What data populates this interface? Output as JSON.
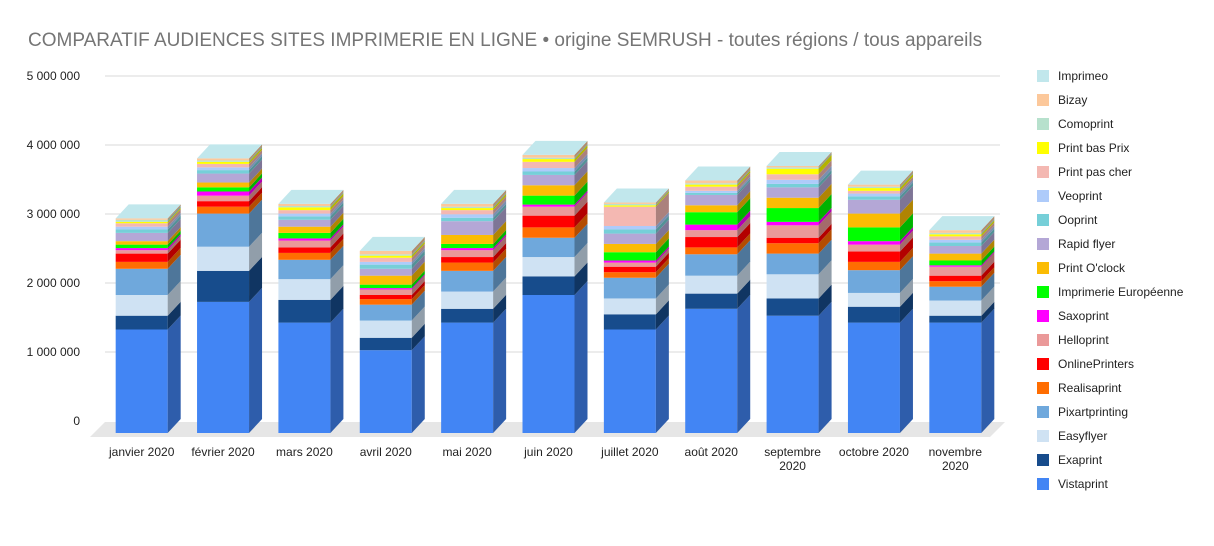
{
  "chart_data": {
    "type": "bar",
    "stacked": true,
    "title": "COMPARATIF AUDIENCES SITES IMPRIMERIE EN LIGNE • origine SEMRUSH - toutes régions / tous appareils",
    "xlabel": "",
    "ylabel": "",
    "ylim": [
      0,
      5000000
    ],
    "yticks": [
      0,
      1000000,
      2000000,
      3000000,
      4000000,
      5000000
    ],
    "ytick_labels": [
      "0",
      "1 000 000",
      "2 000 000",
      "3 000 000",
      "4 000 000",
      "5 000 000"
    ],
    "grid": true,
    "legend_position": "right",
    "categories": [
      [
        "janvier 2020"
      ],
      [
        "février 2020"
      ],
      [
        "mars 2020"
      ],
      [
        "avril 2020"
      ],
      [
        "mai 2020"
      ],
      [
        "juin 2020"
      ],
      [
        "juillet 2020"
      ],
      [
        "août 2020"
      ],
      [
        "septembre",
        "2020"
      ],
      [
        "octobre 2020"
      ],
      [
        "novembre",
        "2020"
      ]
    ],
    "series": [
      {
        "name": "Vistaprint",
        "color": "#4285f4",
        "values": [
          1500000,
          1900000,
          1600000,
          1200000,
          1600000,
          2000000,
          1500000,
          1800000,
          1700000,
          1600000,
          1600000
        ]
      },
      {
        "name": "Exaprint",
        "color": "#174c8c",
        "values": [
          200000,
          450000,
          330000,
          180000,
          200000,
          270000,
          220000,
          220000,
          250000,
          230000,
          100000
        ]
      },
      {
        "name": "Easyflyer",
        "color": "#cfe2f3",
        "values": [
          300000,
          350000,
          300000,
          250000,
          250000,
          280000,
          230000,
          260000,
          350000,
          200000,
          220000
        ]
      },
      {
        "name": "Pixartprinting",
        "color": "#6fa8dc",
        "values": [
          380000,
          480000,
          280000,
          230000,
          300000,
          280000,
          300000,
          310000,
          300000,
          330000,
          200000
        ]
      },
      {
        "name": "Realisaprint",
        "color": "#ff6d01",
        "values": [
          100000,
          100000,
          100000,
          80000,
          120000,
          150000,
          80000,
          100000,
          150000,
          120000,
          80000
        ]
      },
      {
        "name": "OnlinePrinters",
        "color": "#ff0000",
        "values": [
          120000,
          80000,
          80000,
          60000,
          80000,
          170000,
          80000,
          150000,
          80000,
          150000,
          80000
        ]
      },
      {
        "name": "Helloprint",
        "color": "#ea9999",
        "values": [
          50000,
          80000,
          100000,
          80000,
          100000,
          130000,
          60000,
          100000,
          180000,
          100000,
          130000
        ]
      },
      {
        "name": "Saxoprint",
        "color": "#ff00ff",
        "values": [
          30000,
          60000,
          30000,
          20000,
          30000,
          30000,
          30000,
          80000,
          50000,
          50000,
          20000
        ]
      },
      {
        "name": "Imprimerie Européenne",
        "color": "#00ff00",
        "values": [
          50000,
          60000,
          80000,
          50000,
          60000,
          130000,
          120000,
          180000,
          200000,
          200000,
          70000
        ]
      },
      {
        "name": "Print O'clock",
        "color": "#fbbc04",
        "values": [
          50000,
          70000,
          90000,
          130000,
          130000,
          150000,
          120000,
          100000,
          150000,
          200000,
          100000
        ]
      },
      {
        "name": "Rapid flyer",
        "color": "#b4a7d6",
        "values": [
          120000,
          130000,
          100000,
          100000,
          200000,
          150000,
          150000,
          150000,
          150000,
          200000,
          110000
        ]
      },
      {
        "name": "Ooprint",
        "color": "#76cfd8",
        "values": [
          50000,
          50000,
          50000,
          60000,
          50000,
          50000,
          60000,
          30000,
          50000,
          50000,
          50000
        ]
      },
      {
        "name": "Veoprint",
        "color": "#aecbfa",
        "values": [
          40000,
          40000,
          40000,
          40000,
          50000,
          50000,
          50000,
          30000,
          60000,
          40000,
          40000
        ]
      },
      {
        "name": "Print pas cher",
        "color": "#f4b8b2",
        "values": [
          50000,
          50000,
          50000,
          60000,
          60000,
          90000,
          280000,
          60000,
          80000,
          40000,
          50000
        ]
      },
      {
        "name": "Print bas Prix",
        "color": "#ffff00",
        "values": [
          20000,
          30000,
          40000,
          30000,
          30000,
          40000,
          20000,
          30000,
          80000,
          40000,
          30000
        ]
      },
      {
        "name": "Comoprint",
        "color": "#b7e1cd",
        "values": [
          30000,
          20000,
          20000,
          20000,
          20000,
          20000,
          20000,
          20000,
          20000,
          20000,
          20000
        ]
      },
      {
        "name": "Bizay",
        "color": "#fcc89b",
        "values": [
          20000,
          30000,
          30000,
          50000,
          40000,
          40000,
          20000,
          40000,
          20000,
          30000,
          40000
        ]
      },
      {
        "name": "Imprimeo",
        "color": "#c1e7ec",
        "values": [
          0,
          0,
          0,
          0,
          0,
          0,
          0,
          0,
          0,
          0,
          0
        ]
      }
    ]
  }
}
